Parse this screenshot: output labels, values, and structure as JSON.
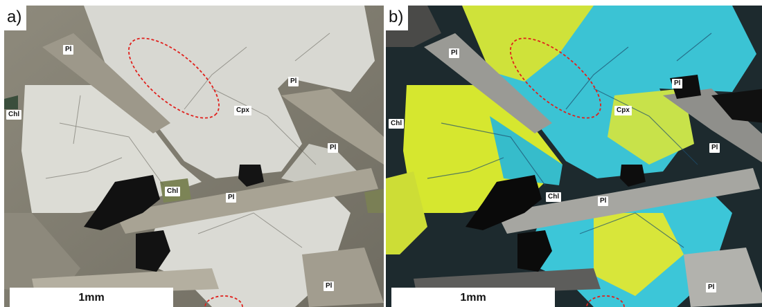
{
  "panels": [
    {
      "label": "a)",
      "minerals": {
        "pl_top": "Pl",
        "pl_mid": "Pl",
        "pl_right": "Pl",
        "pl_center": "Pl",
        "pl_bottom": "Pl",
        "chl_left": "Chl",
        "chl_center": "Chl",
        "cpx": "Cpx"
      },
      "scale_bar": "1mm"
    },
    {
      "label": "b)",
      "minerals": {
        "pl_top": "Pl",
        "pl_mid": "Pl",
        "pl_right": "Pl",
        "pl_center": "Pl",
        "pl_bottom": "Pl",
        "chl_left": "Chl",
        "chl_center": "Chl",
        "cpx": "Cpx"
      },
      "scale_bar": "1mm"
    }
  ],
  "colors": {
    "highlight_ellipse": "#e0201c",
    "label_background": "#ffffff",
    "ppl_cpx": "#d9d9d4",
    "xpl_cyan": "#35c7d6",
    "xpl_yellow": "#d9ea2b"
  }
}
